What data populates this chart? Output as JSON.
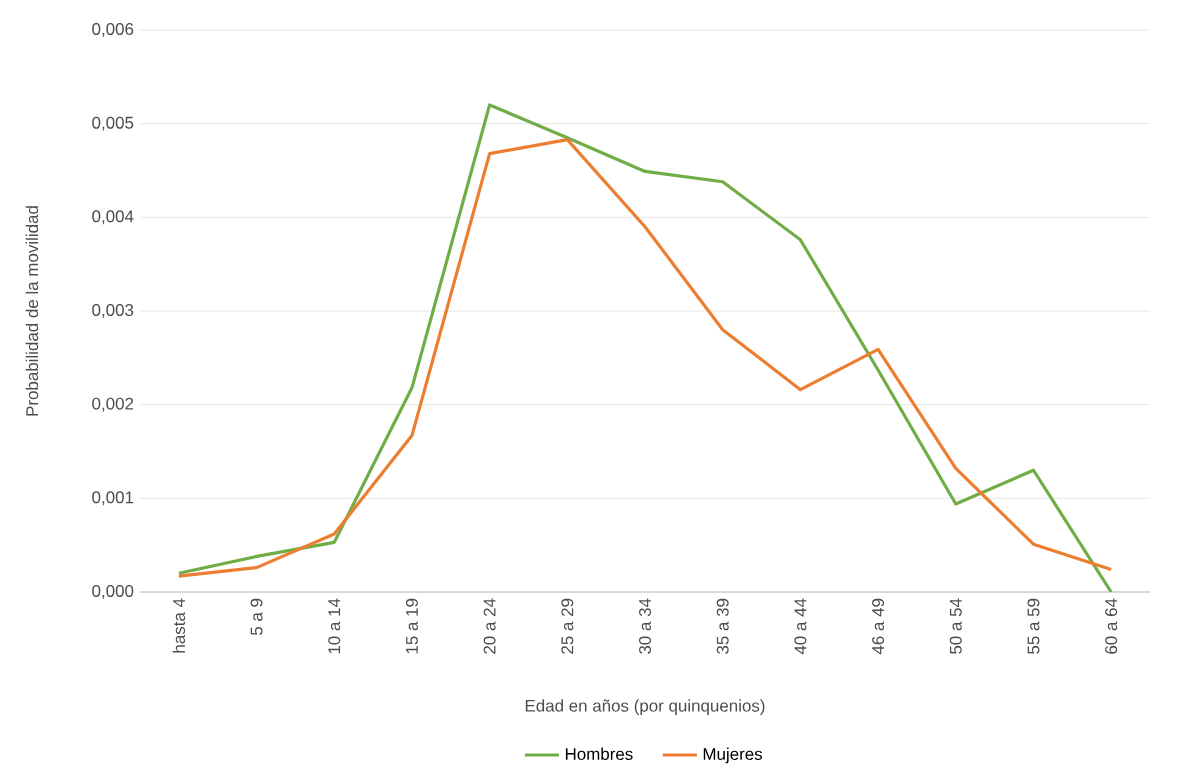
{
  "chart_data": {
    "type": "line",
    "xlabel": "Edad en años (por quinquenios)",
    "ylabel": "Probabilidad de la movilidad",
    "categories": [
      "hasta 4",
      "5 a 9",
      "10 a 14",
      "15 a 19",
      "20 a 24",
      "25 a 29",
      "30 a 34",
      "35 a 39",
      "40 a 44",
      "46 a 49",
      "50 a 54",
      "55 a 59",
      "60 a 64"
    ],
    "series": [
      {
        "name": "Hombres",
        "color": "#70ad47",
        "values": [
          0.0002,
          0.00038,
          0.00053,
          0.00218,
          0.0052,
          0.00485,
          0.00449,
          0.00438,
          0.00376,
          0.00237,
          0.00094,
          0.0013,
          0.0
        ]
      },
      {
        "name": "Mujeres",
        "color": "#ed7d31",
        "values": [
          0.00017,
          0.00026,
          0.00062,
          0.00167,
          0.00468,
          0.00483,
          0.0039,
          0.0028,
          0.00216,
          0.00259,
          0.00132,
          0.00051,
          0.00024
        ]
      }
    ],
    "ylim": [
      0,
      0.006
    ],
    "yticks": [
      {
        "value": 0,
        "label": "0,000"
      },
      {
        "value": 0.001,
        "label": "0,001"
      },
      {
        "value": 0.002,
        "label": "0,002"
      },
      {
        "value": 0.003,
        "label": "0,003"
      },
      {
        "value": 0.004,
        "label": "0,004"
      },
      {
        "value": 0.005,
        "label": "0,005"
      },
      {
        "value": 0.006,
        "label": "0,006"
      }
    ],
    "grid": "y",
    "legend": "bottom"
  }
}
